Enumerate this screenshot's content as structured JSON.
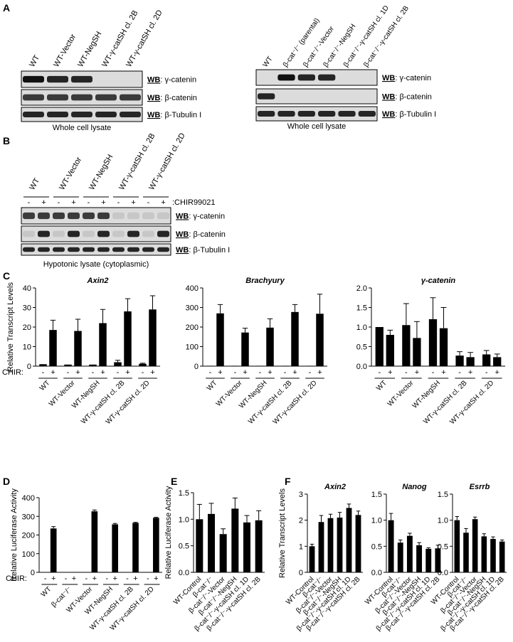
{
  "panel_labels": [
    "A",
    "B",
    "C",
    "D",
    "E",
    "F"
  ],
  "blots": [
    {
      "lanes": [
        "WT",
        "WT-Vector",
        "WT-NegSH",
        "WT-γ-catSH cl. 2B",
        "WT-γ-catSH cl. 2D"
      ],
      "wb": "WB",
      "rows": [
        ": γ-catenin",
        ": β-catenin",
        ": β-Tubulin I"
      ],
      "caption": "Whole cell lysate"
    },
    {
      "lanes": [
        "WT",
        "β-cat⁻/⁻ (parental)",
        "β-cat⁻/⁻-Vector",
        "β-cat⁻/⁻-NegSH",
        "β-cat⁻/⁻-γ-catSH cl. 1D",
        "β-cat⁻/⁻-γ-catSH cl. 2B"
      ],
      "wb": "WB",
      "rows": [
        ": γ-catenin",
        ": β-catenin",
        ": β-Tubulin I"
      ],
      "caption": "Whole cell lysate"
    },
    {
      "lane_groups": [
        "WT",
        "WT-Vector",
        "WT-NegSH",
        "WT-γ-catSH cl. 2B",
        "WT-γ-catSH cl. 2D"
      ],
      "signs": [
        "-",
        "+"
      ],
      "treatment": ":CHIR99021",
      "wb": "WB",
      "rows": [
        ": γ-catenin",
        ": β-catenin",
        ": β-Tubulin I"
      ],
      "caption": "Hypotonic lysate (cytoplasmic)"
    }
  ],
  "chart_data": [
    {
      "type": "bar",
      "title": "Axin2",
      "ylabel": "Relative Transcript Levels",
      "sign_label": "CHIR:",
      "categories": [
        "WT",
        "WT-Vector",
        "WT-NegSH",
        "WT-γ-catSH cl. 2B",
        "WT-γ-catSH cl. 2D"
      ],
      "series": [
        {
          "name": "-",
          "color": "#000000",
          "values": [
            1,
            0.8,
            0.8,
            2,
            1.2
          ],
          "errors": [
            null,
            null,
            null,
            1,
            0.3
          ]
        },
        {
          "name": "+",
          "color": "#000000",
          "values": [
            18.5,
            18,
            22,
            28,
            29
          ],
          "errors": [
            5,
            6,
            7,
            6.5,
            7
          ]
        }
      ],
      "ylim": [
        0,
        40
      ],
      "yticks": [
        0,
        10,
        20,
        30,
        40
      ]
    },
    {
      "type": "bar",
      "title": "Brachyury",
      "categories": [
        "WT",
        "WT-Vector",
        "WT-NegSH",
        "WT-γ-catSH cl. 2B",
        "WT-γ-catSH cl. 2D"
      ],
      "series": [
        {
          "name": "-",
          "color": "#000000",
          "values": [
            2,
            2,
            2,
            2,
            2
          ],
          "errors": [
            null,
            null,
            null,
            null,
            null
          ]
        },
        {
          "name": "+",
          "color": "#000000",
          "values": [
            270,
            172,
            197,
            277,
            268
          ],
          "errors": [
            45,
            22,
            45,
            38,
            100
          ]
        }
      ],
      "ylim": [
        0,
        400
      ],
      "yticks": [
        0,
        100,
        200,
        300,
        400
      ]
    },
    {
      "type": "bar",
      "title": "γ-catenin",
      "categories": [
        "WT",
        "WT-Vector",
        "WT-NegSH",
        "WT-γ-catSH cl. 2B",
        "WT-γ-catSH cl. 2D"
      ],
      "series": [
        {
          "name": "-",
          "color": "#000000",
          "values": [
            1.0,
            1.05,
            1.2,
            0.27,
            0.3
          ],
          "errors": [
            null,
            0.55,
            0.55,
            0.1,
            0.1
          ]
        },
        {
          "name": "+",
          "color": "#000000",
          "values": [
            0.8,
            0.72,
            0.97,
            0.23,
            0.23
          ],
          "errors": [
            0.12,
            0.42,
            0.53,
            0.12,
            0.08
          ]
        }
      ],
      "ylim": [
        0,
        2
      ],
      "yticks": [
        {
          "value": 0,
          "label": "0.0"
        },
        0.5,
        {
          "value": 1,
          "label": "1.0"
        },
        1.5,
        {
          "value": 2,
          "label": "2.0"
        }
      ]
    },
    {
      "type": "bar",
      "ylabel": "Relative Luciferase Activity",
      "sign_label": "CHIR:",
      "categories": [
        "WT",
        "β-cat⁻/⁻",
        "WT-Vector",
        "WT-NegSH",
        "WT-γ-catSH cl. 2B",
        "WT-γ-catSH cl. 2D"
      ],
      "series": [
        {
          "name": "-",
          "color": "#000000",
          "values": [
            0,
            0,
            0,
            0,
            0,
            0
          ],
          "errors": [
            null,
            null,
            null,
            null,
            null,
            null
          ]
        },
        {
          "name": "+",
          "color": "#000000",
          "values": [
            235,
            0,
            327,
            257,
            265,
            292
          ],
          "errors": [
            10,
            null,
            7,
            5,
            3,
            3
          ]
        }
      ],
      "ylim": [
        0,
        400
      ],
      "yticks": [
        0,
        100,
        200,
        300,
        400
      ]
    },
    {
      "type": "bar",
      "ylabel": "Relative Luciferase Activity",
      "categories": [
        "WT-Control",
        "β-cat⁻/⁻",
        "β-cat⁻/⁻-Vector",
        "β-cat⁻/⁻-NegSH",
        "β-cat⁻/⁻-γ-catSH cl. 1D",
        "β-cat⁻/⁻-γ-catSH cl. 2B"
      ],
      "values": [
        1.0,
        1.1,
        0.72,
        1.2,
        0.94,
        0.98
      ],
      "errors": [
        0.28,
        0.2,
        0.1,
        0.2,
        0.13,
        0.18
      ],
      "color": "#000000",
      "ylim": [
        0,
        1.5
      ],
      "yticks": [
        {
          "value": 0,
          "label": "0.0"
        },
        0.5,
        {
          "value": 1,
          "label": "1.0"
        },
        1.5
      ]
    },
    {
      "type": "bar",
      "title": "Axin2",
      "ylabel": "Relative Transcript Levels",
      "categories": [
        "WT-Control",
        "β-cat⁻/⁻",
        "β-cat⁻/⁻-Vector",
        "β-cat⁻/⁻-NegSH",
        "β-cat⁻/⁻-γ-catSH cl. 1D",
        "β-cat⁻/⁻-γ-catSH cl. 2B"
      ],
      "values": [
        1.0,
        1.93,
        2.08,
        2.1,
        2.47,
        2.2
      ],
      "errors": [
        0.08,
        0.25,
        0.15,
        0.2,
        0.15,
        0.15
      ],
      "color": "#000000",
      "ylim": [
        0,
        3
      ],
      "yticks": [
        0,
        1,
        2,
        3
      ]
    },
    {
      "type": "bar",
      "title": "Nanog",
      "categories": [
        "WT-Control",
        "β-cat⁻/⁻",
        "β-cat⁻/⁻-Vector",
        "β-cat⁻/⁻-NegSH",
        "β-cat⁻/⁻-γ-catSH cl. 1D",
        "β-cat⁻/⁻-γ-catSH cl. 2B"
      ],
      "values": [
        1.0,
        0.57,
        0.7,
        0.52,
        0.45,
        0.46
      ],
      "errors": [
        0.13,
        0.05,
        0.05,
        0.05,
        0.02,
        0.06
      ],
      "color": "#000000",
      "ylim": [
        0,
        1.5
      ],
      "yticks": [
        {
          "value": 0,
          "label": "0.0"
        },
        0.5,
        {
          "value": 1,
          "label": "1.0"
        },
        1.5
      ]
    },
    {
      "type": "bar",
      "title": "Esrrb",
      "categories": [
        "WT-Control",
        "β-cat⁻/⁻",
        "β-cat⁻/⁻-Vector",
        "β-cat⁻/⁻-NegSH",
        "β-cat⁻/⁻-γ-catSH cl. 1D",
        "β-cat⁻/⁻-γ-catSH cl. 2B"
      ],
      "values": [
        1.0,
        0.76,
        1.02,
        0.69,
        0.64,
        0.59
      ],
      "errors": [
        0.07,
        0.08,
        0.04,
        0.05,
        0.04,
        0.03
      ],
      "color": "#000000",
      "ylim": [
        0,
        1.5
      ],
      "yticks": [
        {
          "value": 0,
          "label": "0.0"
        },
        0.5,
        {
          "value": 1,
          "label": "1.0"
        },
        1.5
      ]
    }
  ]
}
